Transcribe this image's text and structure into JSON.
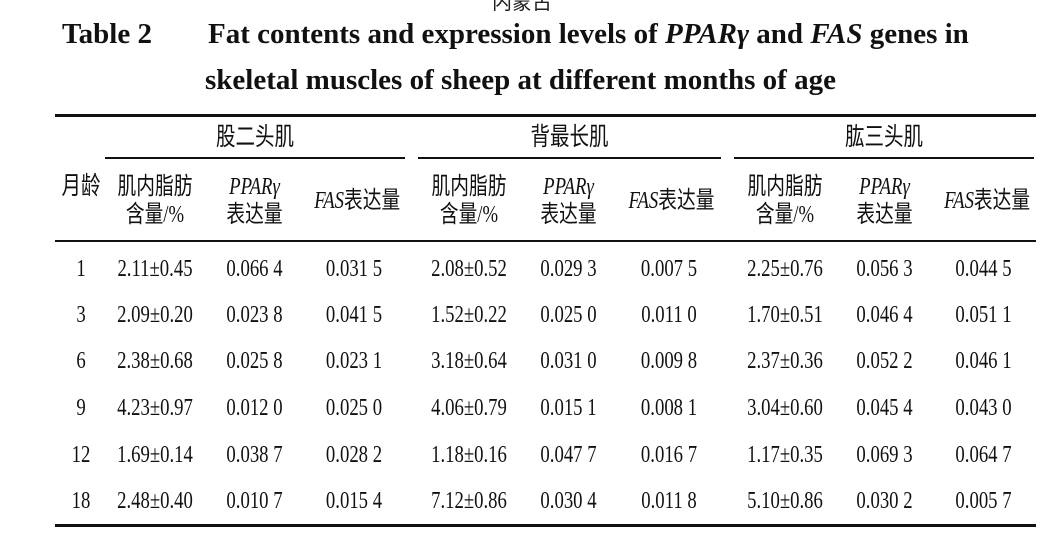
{
  "top_fragment": "内蒙古",
  "title": {
    "label": "Table 2",
    "line1_pre": "Fat contents and expression levels of ",
    "gene1": "PPARγ",
    "mid": " and ",
    "gene2": "FAS",
    "line1_post": " genes in",
    "line2": "skeletal muscles of sheep at different months of age"
  },
  "table": {
    "age_header": "月龄",
    "groups": [
      "股二头肌",
      "背最长肌",
      "肱三头肌"
    ],
    "sub_headers": {
      "fat_line1": "肌内脂肪",
      "fat_line2": "含量/%",
      "ppar_line1": "PPARγ",
      "ppar_line2": "表达量",
      "fas_prefix": "FAS",
      "fas_suffix": "表达量"
    },
    "rows": [
      [
        "1",
        "2.11±0.45",
        "0.066 4",
        "0.031 5",
        "2.08±0.52",
        "0.029 3",
        "0.007 5",
        "2.25±0.76",
        "0.056 3",
        "0.044 5"
      ],
      [
        "3",
        "2.09±0.20",
        "0.023 8",
        "0.041 5",
        "1.52±0.22",
        "0.025 0",
        "0.011 0",
        "1.70±0.51",
        "0.046 4",
        "0.051 1"
      ],
      [
        "6",
        "2.38±0.68",
        "0.025 8",
        "0.023 1",
        "3.18±0.64",
        "0.031 0",
        "0.009 8",
        "2.37±0.36",
        "0.052 2",
        "0.046 1"
      ],
      [
        "9",
        "4.23±0.97",
        "0.012 0",
        "0.025 0",
        "4.06±0.79",
        "0.015 1",
        "0.008 1",
        "3.04±0.60",
        "0.045 4",
        "0.043 0"
      ],
      [
        "12",
        "1.69±0.14",
        "0.038 7",
        "0.028 2",
        "1.18±0.16",
        "0.047 7",
        "0.016 7",
        "1.17±0.35",
        "0.069 3",
        "0.064 7"
      ],
      [
        "18",
        "2.48±0.40",
        "0.010 7",
        "0.015 4",
        "7.12±0.86",
        "0.030 4",
        "0.011 8",
        "5.10±0.86",
        "0.030 2",
        "0.005 7"
      ]
    ]
  }
}
